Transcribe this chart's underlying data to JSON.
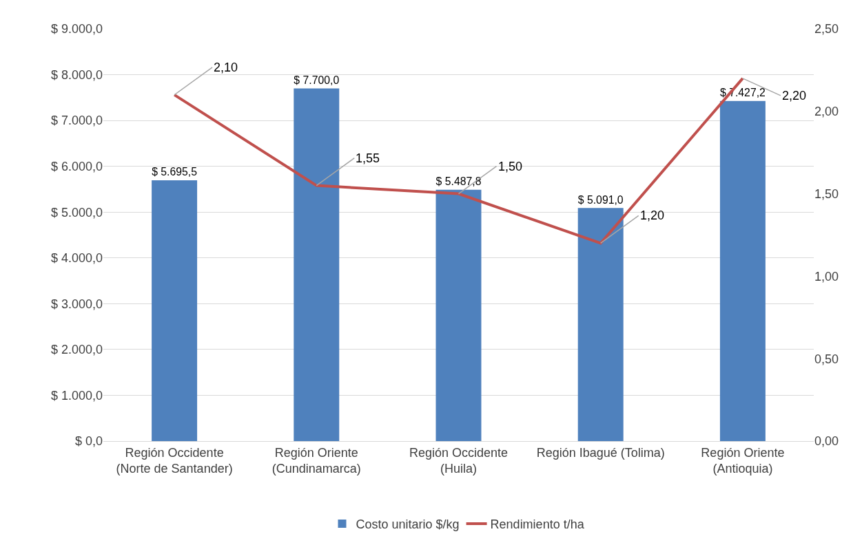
{
  "chart_data": {
    "type": "bar",
    "categories": [
      "Región Occidente (Norte de Santander)",
      "Región Oriente (Cundinamarca)",
      "Región Occidente (Huila)",
      "Región Ibagué (Tolima)",
      "Región Oriente (Antioquia)"
    ],
    "series": [
      {
        "name": "Costo unitario $/kg",
        "color": "#4f81bd",
        "values": [
          5695.5,
          7700.0,
          5487.8,
          5091.0,
          7427.2
        ],
        "value_labels": [
          "$ 5.695,5",
          "$ 7.700,0",
          "$ 5.487,8",
          "$ 5.091,0",
          "$ 7.427,2"
        ]
      },
      {
        "name": "Rendimiento t/ha",
        "type": "line",
        "axis": "y2",
        "color": "#c0504d",
        "values": [
          2.1,
          1.55,
          1.5,
          1.2,
          2.2
        ],
        "value_labels": [
          "2,10",
          "1,55",
          "1,50",
          "1,20",
          "2,20"
        ]
      }
    ],
    "ylim": [
      0,
      9000
    ],
    "yticks": [
      {
        "value": 0,
        "label": "$ 0,0"
      },
      {
        "value": 1000,
        "label": "$ 1.000,0"
      },
      {
        "value": 2000,
        "label": "$ 2.000,0"
      },
      {
        "value": 3000,
        "label": "$ 3.000,0"
      },
      {
        "value": 4000,
        "label": "$ 4.000,0"
      },
      {
        "value": 5000,
        "label": "$ 5.000,0"
      },
      {
        "value": 6000,
        "label": "$ 6.000,0"
      },
      {
        "value": 7000,
        "label": "$ 7.000,0"
      },
      {
        "value": 8000,
        "label": "$ 8.000,0"
      },
      {
        "value": 9000,
        "label": "$ 9.000,0"
      }
    ],
    "y2lim": [
      0,
      2.5
    ],
    "y2ticks": [
      {
        "value": 0,
        "label": "0,00"
      },
      {
        "value": 0.5,
        "label": "0,50"
      },
      {
        "value": 1,
        "label": "1,00"
      },
      {
        "value": 1.5,
        "label": "1,50"
      },
      {
        "value": 2,
        "label": "2,00"
      },
      {
        "value": 2.5,
        "label": "2,50"
      }
    ],
    "grid": "y",
    "legend": "bottom",
    "marker": "none",
    "line_style": "solid"
  }
}
